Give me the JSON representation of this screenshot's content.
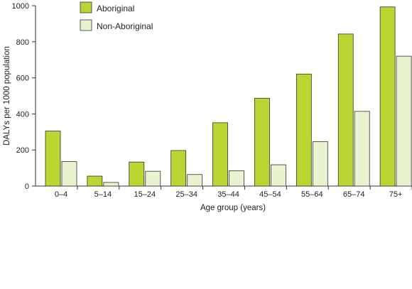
{
  "chart_data": {
    "type": "bar",
    "categories": [
      "0–4",
      "5–14",
      "15–24",
      "25–34",
      "35–44",
      "45–54",
      "55–64",
      "65–74",
      "75+"
    ],
    "series": [
      {
        "name": "Aboriginal",
        "color": "#b9d633",
        "values": [
          305,
          55,
          133,
          197,
          351,
          487,
          621,
          843,
          993
        ]
      },
      {
        "name": "Non-Aboriginal",
        "color": "#eaf3cf",
        "values": [
          136,
          20,
          82,
          64,
          85,
          118,
          246,
          414,
          720
        ]
      }
    ],
    "xlabel": "Age group (years)",
    "ylabel": "DALYs per 1000 population",
    "ylim": [
      0,
      1000
    ],
    "yticks": [
      0,
      200,
      400,
      600,
      800,
      1000
    ],
    "grid": false,
    "legend_position": "top-left"
  }
}
